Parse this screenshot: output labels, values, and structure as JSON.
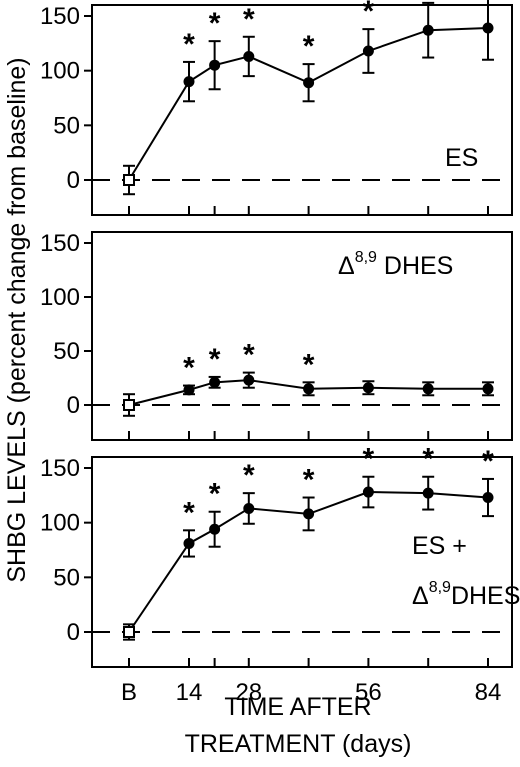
{
  "chart_data": [
    {
      "type": "line",
      "panel_label_lines": [
        {
          "delta": "",
          "sup": "",
          "text": "ES"
        }
      ],
      "x": [
        "B",
        14,
        20,
        28,
        42,
        56,
        70,
        84
      ],
      "y": [
        0,
        90,
        105,
        113,
        89,
        118,
        137,
        139
      ],
      "y_err": [
        13,
        18,
        22,
        18,
        17,
        20,
        25,
        29
      ],
      "significant": [
        false,
        true,
        true,
        true,
        true,
        true,
        true,
        true
      ],
      "ylim": [
        0,
        150
      ],
      "yticks": [
        "0",
        "50",
        "100",
        "150"
      ]
    },
    {
      "type": "line",
      "panel_label_lines": [
        {
          "delta": "Δ",
          "sup": "8,9",
          "text": " DHES"
        }
      ],
      "x": [
        "B",
        14,
        20,
        28,
        42,
        56,
        70,
        84
      ],
      "y": [
        0,
        14,
        21,
        23,
        15,
        16,
        15,
        15
      ],
      "y_err": [
        10,
        4,
        5,
        7,
        6,
        6,
        6,
        6
      ],
      "significant": [
        false,
        true,
        true,
        true,
        true,
        false,
        false,
        false
      ],
      "ylim": [
        0,
        150
      ],
      "yticks": [
        "0",
        "50",
        "100",
        "150"
      ]
    },
    {
      "type": "line",
      "panel_label_lines": [
        {
          "delta": "",
          "sup": "",
          "text": "ES +"
        },
        {
          "delta": "Δ",
          "sup": "8,9",
          "text": "DHES"
        }
      ],
      "x": [
        "B",
        14,
        20,
        28,
        42,
        56,
        70,
        84
      ],
      "y": [
        0,
        81,
        94,
        113,
        108,
        128,
        127,
        123
      ],
      "y_err": [
        7,
        12,
        16,
        14,
        15,
        14,
        15,
        17
      ],
      "significant": [
        false,
        true,
        true,
        true,
        true,
        true,
        true,
        true
      ],
      "ylim": [
        0,
        150
      ],
      "yticks": [
        "0",
        "50",
        "100",
        "150"
      ]
    }
  ],
  "x_tick_labels": [
    {
      "x": "B",
      "label": "B"
    },
    {
      "x": 14,
      "label": "14"
    },
    {
      "x": 28,
      "label": "28"
    },
    {
      "x": 56,
      "label": "56"
    },
    {
      "x": 84,
      "label": "84"
    }
  ],
  "xlabel_lines": [
    "TIME AFTER",
    "TREATMENT (days)"
  ],
  "ylabel": "SHBG LEVELS (percent change from baseline)",
  "significance_marker": "*",
  "colors": {
    "ink": "#000000",
    "baseline_marker_fill": "#ffffff"
  }
}
